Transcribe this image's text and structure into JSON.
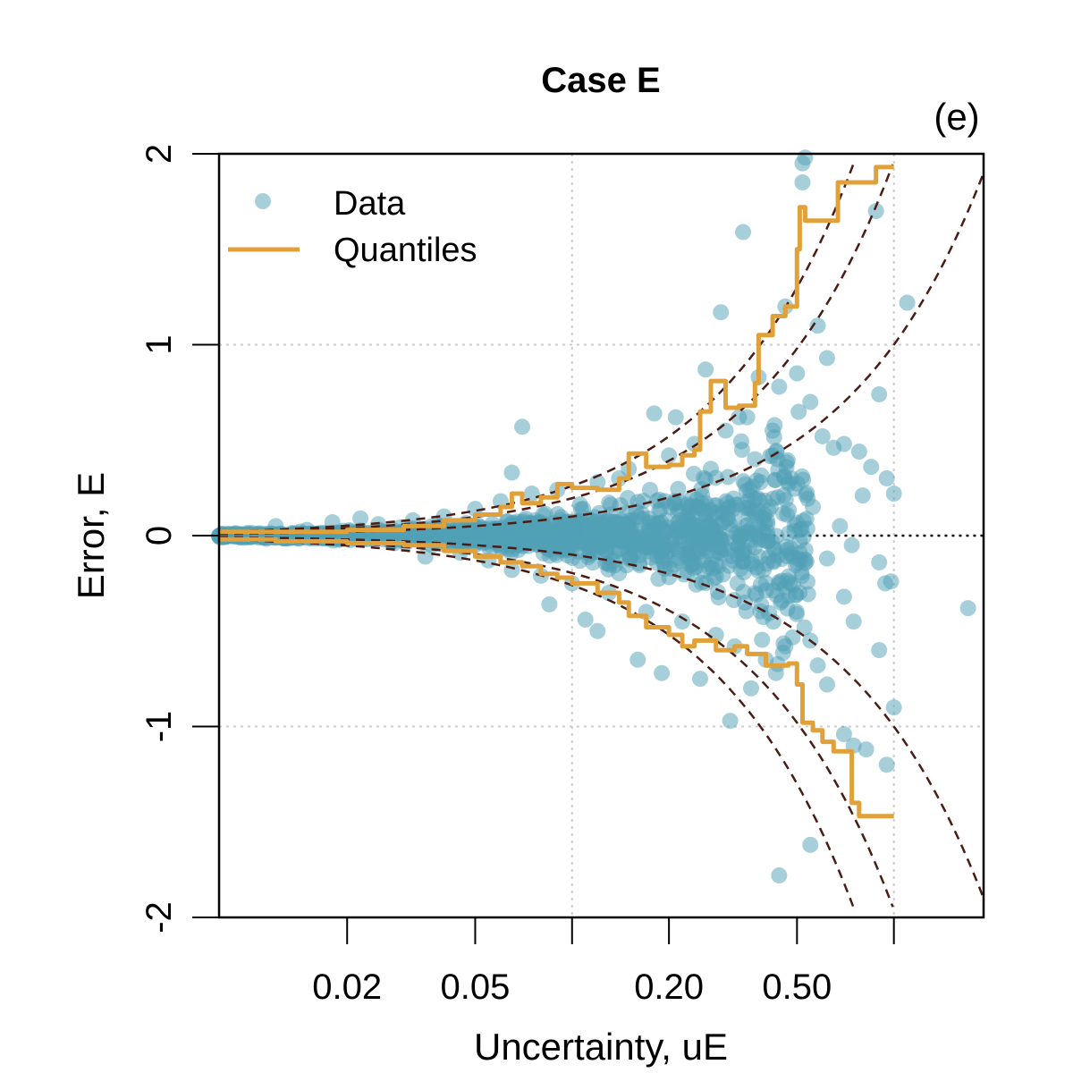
{
  "chart_data": {
    "type": "scatter",
    "title": "Case E",
    "panel_label": "(e)",
    "xlabel": "Uncertainty, uE",
    "ylabel": "Error, E",
    "x_scale": "log",
    "xlim": [
      0.008,
      1.9
    ],
    "ylim": [
      -2,
      2
    ],
    "x_ticks": [
      0.02,
      0.05,
      0.2,
      0.5
    ],
    "x_tick_marks": [
      0.02,
      0.05,
      0.1,
      0.2,
      0.5,
      1.0
    ],
    "x_tick_labels": [
      "0.02",
      "0.05",
      "0.20",
      "0.50"
    ],
    "y_ticks": [
      -2,
      -1,
      0,
      1,
      2
    ],
    "y_tick_labels": [
      "-2",
      "-1",
      "0",
      "1",
      "2"
    ],
    "grid": true,
    "grid_x": [
      0.1,
      1.0
    ],
    "grid_y": [
      -1,
      1
    ],
    "legend_position": "top-left",
    "colors": {
      "points": "#4f9fb5",
      "quantiles": "#e0a13a",
      "guides": "#4a1c14",
      "grid": "#cccccc",
      "zero_line": "#000000"
    },
    "series": [
      {
        "name": "Data",
        "kind": "points",
        "points": [
          [
            0.53,
            1.98
          ],
          [
            0.52,
            1.85
          ],
          [
            0.52,
            1.95
          ],
          [
            0.88,
            1.7
          ],
          [
            0.34,
            1.59
          ],
          [
            0.29,
            1.17
          ],
          [
            0.46,
            1.2
          ],
          [
            0.58,
            1.1
          ],
          [
            1.1,
            1.22
          ],
          [
            0.62,
            0.93
          ],
          [
            0.26,
            0.87
          ],
          [
            0.38,
            0.83
          ],
          [
            0.5,
            0.85
          ],
          [
            0.44,
            0.78
          ],
          [
            0.9,
            0.74
          ],
          [
            0.55,
            0.7
          ],
          [
            0.18,
            0.64
          ],
          [
            0.21,
            0.62
          ],
          [
            0.33,
            0.62
          ],
          [
            0.42,
            0.55
          ],
          [
            0.6,
            0.52
          ],
          [
            0.7,
            0.48
          ],
          [
            0.78,
            0.44
          ],
          [
            0.65,
            0.46
          ],
          [
            0.85,
            0.36
          ],
          [
            0.95,
            0.3
          ],
          [
            1.0,
            0.22
          ],
          [
            0.8,
            0.21
          ],
          [
            0.07,
            0.57
          ],
          [
            0.065,
            0.33
          ],
          [
            0.14,
            0.3
          ],
          [
            0.27,
            0.35
          ],
          [
            0.37,
            0.4
          ],
          [
            0.48,
            0.3
          ],
          [
            0.56,
            0.15
          ],
          [
            0.68,
            0.05
          ],
          [
            0.74,
            -0.05
          ],
          [
            0.62,
            -0.12
          ],
          [
            0.9,
            -0.14
          ],
          [
            0.94,
            -0.25
          ],
          [
            0.7,
            -0.32
          ],
          [
            0.75,
            -0.45
          ],
          [
            0.55,
            -0.55
          ],
          [
            0.58,
            -0.68
          ],
          [
            0.46,
            -0.58
          ],
          [
            0.43,
            -0.72
          ],
          [
            0.36,
            -0.8
          ],
          [
            0.31,
            -0.97
          ],
          [
            0.25,
            -0.75
          ],
          [
            0.19,
            -0.72
          ],
          [
            0.16,
            -0.65
          ],
          [
            0.12,
            -0.5
          ],
          [
            0.11,
            -0.44
          ],
          [
            0.085,
            -0.36
          ],
          [
            0.62,
            -0.78
          ],
          [
            0.7,
            -1.04
          ],
          [
            0.75,
            -1.1
          ],
          [
            0.82,
            -1.12
          ],
          [
            0.95,
            -1.2
          ],
          [
            1.0,
            -0.9
          ],
          [
            0.55,
            -1.62
          ],
          [
            0.44,
            -1.78
          ],
          [
            1.7,
            -0.38
          ],
          [
            0.9,
            -0.6
          ],
          [
            0.98,
            -0.24
          ],
          [
            0.012,
            0.05
          ],
          [
            0.015,
            0.03
          ],
          [
            0.018,
            0.07
          ],
          [
            0.022,
            0.09
          ],
          [
            0.025,
            0.06
          ],
          [
            0.028,
            -0.04
          ],
          [
            0.032,
            0.08
          ],
          [
            0.035,
            -0.11
          ],
          [
            0.04,
            0.1
          ],
          [
            0.045,
            -0.09
          ],
          [
            0.05,
            0.14
          ],
          [
            0.055,
            -0.13
          ],
          [
            0.06,
            0.18
          ],
          [
            0.065,
            -0.18
          ],
          [
            0.075,
            0.22
          ],
          [
            0.08,
            -0.21
          ],
          [
            0.09,
            0.24
          ],
          [
            0.1,
            -0.25
          ],
          [
            0.12,
            0.28
          ],
          [
            0.13,
            -0.3
          ],
          [
            0.15,
            0.35
          ],
          [
            0.17,
            -0.4
          ],
          [
            0.2,
            0.42
          ],
          [
            0.22,
            -0.45
          ],
          [
            0.24,
            0.48
          ],
          [
            0.28,
            -0.52
          ],
          [
            0.3,
            0.55
          ],
          [
            0.32,
            -0.58
          ],
          [
            0.35,
            0.62
          ],
          [
            0.4,
            -0.65
          ]
        ]
      },
      {
        "name": "Quantiles",
        "kind": "upper",
        "points": [
          [
            0.008,
            0.02
          ],
          [
            0.012,
            0.02
          ],
          [
            0.02,
            0.03
          ],
          [
            0.03,
            0.05
          ],
          [
            0.04,
            0.08
          ],
          [
            0.05,
            0.11
          ],
          [
            0.06,
            0.15
          ],
          [
            0.065,
            0.22
          ],
          [
            0.07,
            0.17
          ],
          [
            0.08,
            0.2
          ],
          [
            0.09,
            0.27
          ],
          [
            0.1,
            0.25
          ],
          [
            0.12,
            0.24
          ],
          [
            0.14,
            0.3
          ],
          [
            0.15,
            0.43
          ],
          [
            0.17,
            0.36
          ],
          [
            0.2,
            0.37
          ],
          [
            0.22,
            0.42
          ],
          [
            0.24,
            0.45
          ],
          [
            0.25,
            0.65
          ],
          [
            0.27,
            0.81
          ],
          [
            0.3,
            0.67
          ],
          [
            0.33,
            0.68
          ],
          [
            0.37,
            0.8
          ],
          [
            0.38,
            1.05
          ],
          [
            0.42,
            1.15
          ],
          [
            0.46,
            1.2
          ],
          [
            0.5,
            1.5
          ],
          [
            0.51,
            1.72
          ],
          [
            0.53,
            1.65
          ],
          [
            0.65,
            1.65
          ],
          [
            0.67,
            1.85
          ],
          [
            0.85,
            1.85
          ],
          [
            0.88,
            1.93
          ],
          [
            1.0,
            1.93
          ]
        ]
      },
      {
        "name": "",
        "kind": "lower",
        "points": [
          [
            0.008,
            -0.02
          ],
          [
            0.012,
            -0.03
          ],
          [
            0.02,
            -0.04
          ],
          [
            0.03,
            -0.05
          ],
          [
            0.04,
            -0.08
          ],
          [
            0.05,
            -0.11
          ],
          [
            0.06,
            -0.14
          ],
          [
            0.07,
            -0.16
          ],
          [
            0.08,
            -0.2
          ],
          [
            0.09,
            -0.22
          ],
          [
            0.1,
            -0.25
          ],
          [
            0.12,
            -0.3
          ],
          [
            0.14,
            -0.35
          ],
          [
            0.15,
            -0.42
          ],
          [
            0.17,
            -0.48
          ],
          [
            0.2,
            -0.52
          ],
          [
            0.22,
            -0.58
          ],
          [
            0.24,
            -0.55
          ],
          [
            0.28,
            -0.6
          ],
          [
            0.32,
            -0.58
          ],
          [
            0.35,
            -0.62
          ],
          [
            0.4,
            -0.68
          ],
          [
            0.47,
            -0.67
          ],
          [
            0.5,
            -0.78
          ],
          [
            0.52,
            -0.98
          ],
          [
            0.56,
            -1.02
          ],
          [
            0.6,
            -1.08
          ],
          [
            0.65,
            -1.13
          ],
          [
            0.73,
            -1.13
          ],
          [
            0.74,
            -1.4
          ],
          [
            0.78,
            -1.47
          ],
          [
            1.0,
            -1.47
          ]
        ]
      }
    ],
    "guide_curves": [
      {
        "label": "",
        "k": 1.96
      },
      {
        "label": "",
        "k": -1.96
      },
      {
        "label": "",
        "k": 2.6
      },
      {
        "label": "",
        "k": -2.6
      },
      {
        "label": "",
        "k": 1.0
      },
      {
        "label": "",
        "k": -1.0
      }
    ]
  }
}
